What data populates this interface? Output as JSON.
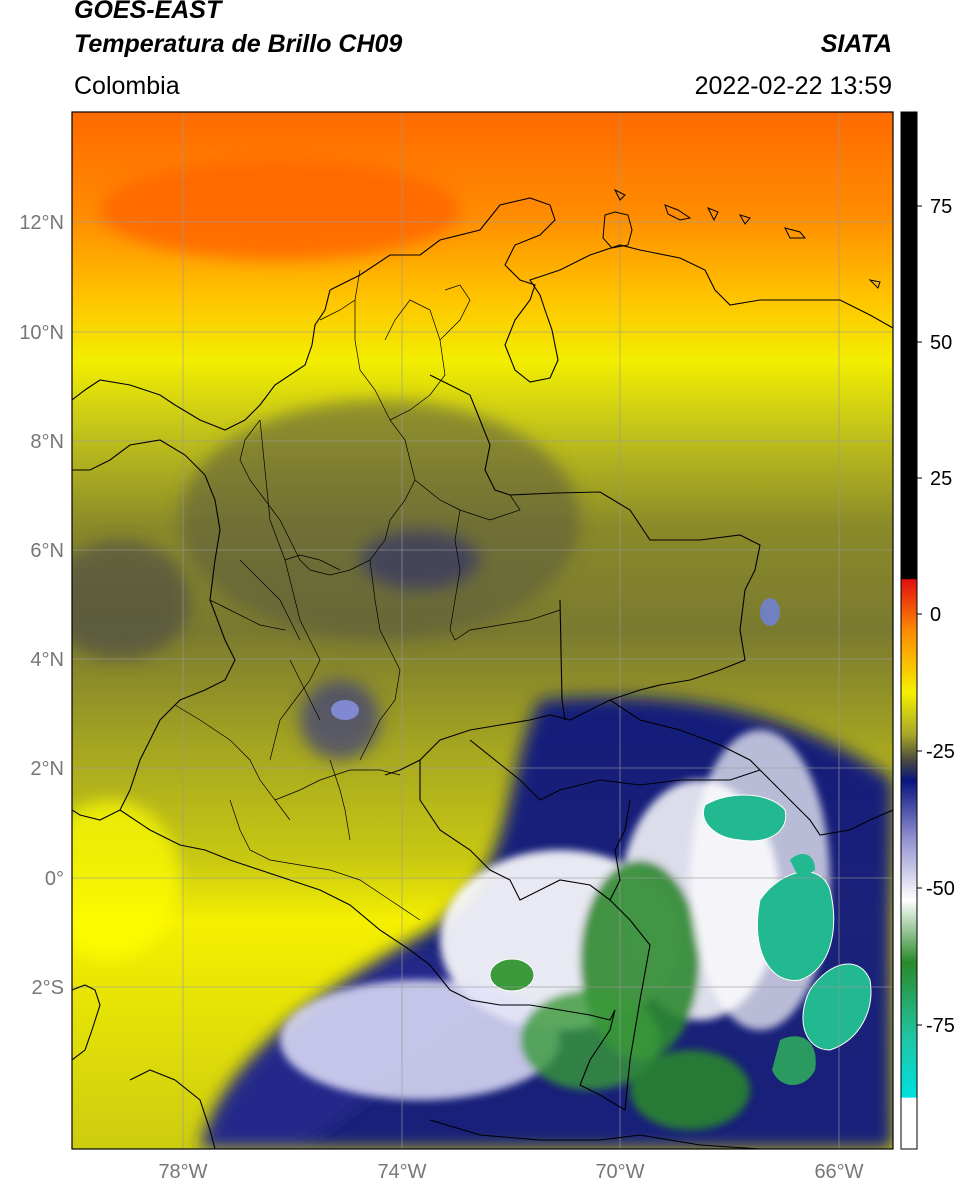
{
  "header": {
    "satellite": "GOES-EAST",
    "product": "Temperatura de Brillo CH09",
    "region": "Colombia",
    "agency": "SIATA",
    "timestamp": "2022-02-22 13:59"
  },
  "map": {
    "lat_labels": [
      "12°N",
      "10°N",
      "8°N",
      "6°N",
      "4°N",
      "2°N",
      "0°",
      "2°S"
    ],
    "lon_labels": [
      "78°W",
      "74°W",
      "70°W",
      "66°W"
    ]
  },
  "colorbar": {
    "ticks": [
      "75",
      "50",
      "25",
      "0",
      "-25",
      "-50",
      "-75"
    ],
    "colors": {
      "black": "#000000",
      "red": "#e01010",
      "orange": "#ff8a00",
      "yellow": "#f5f000",
      "olive": "#8a8a20",
      "gray": "#4a4a40",
      "navy": "#0a1580",
      "white": "#ffffff",
      "green": "#2a8a2a",
      "teal": "#20c4a0",
      "cyan": "#00e0e0"
    }
  }
}
